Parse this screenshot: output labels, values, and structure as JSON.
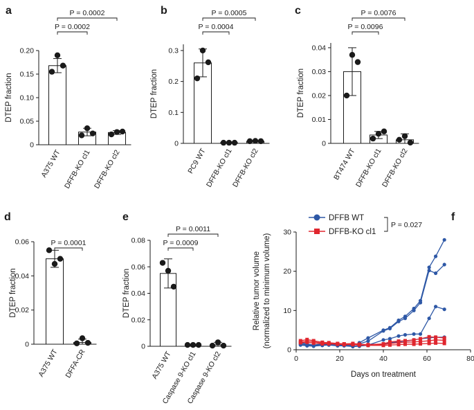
{
  "chart_data": [
    {
      "id": "a",
      "type": "bar",
      "panel_label": "a",
      "ylabel": "DTEP fraction",
      "ylim": [
        0,
        0.2
      ],
      "yticks": [
        0,
        0.05,
        0.1,
        0.15,
        0.2
      ],
      "ytick_labels": [
        "0",
        "0.05",
        "0.10",
        "0.15",
        "0.20"
      ],
      "categories": [
        "A375 WT",
        "DFFB-KO cl1",
        "DFFB-KO cl2"
      ],
      "values": [
        0.168,
        0.027,
        0.026
      ],
      "errors": [
        0.015,
        0.008,
        0.004
      ],
      "points": [
        [
          0.155,
          0.19,
          0.168
        ],
        [
          0.02,
          0.035,
          0.024
        ],
        [
          0.022,
          0.027,
          0.028
        ]
      ],
      "comparisons": [
        {
          "from": 0,
          "to": 1,
          "p": "P = 0.0002",
          "level": 1
        },
        {
          "from": 0,
          "to": 2,
          "p": "P = 0.0002",
          "level": 2
        }
      ]
    },
    {
      "id": "b",
      "type": "bar",
      "panel_label": "b",
      "ylabel": "DTEP fraction",
      "ylim": [
        0,
        0.32
      ],
      "yticks": [
        0,
        0.1,
        0.2,
        0.3
      ],
      "ytick_labels": [
        "0",
        "0.1",
        "0.2",
        "0.3"
      ],
      "categories": [
        "PC9 WT",
        "DFFB-KO cl1",
        "DFFB-KO cl2"
      ],
      "values": [
        0.26,
        0.002,
        0.007
      ],
      "errors": [
        0.045,
        0.002,
        0.002
      ],
      "points": [
        [
          0.21,
          0.3,
          0.262
        ],
        [
          0.002,
          0.002,
          0.002
        ],
        [
          0.007,
          0.008,
          0.007
        ]
      ],
      "comparisons": [
        {
          "from": 0,
          "to": 1,
          "p": "P = 0.0004",
          "level": 1
        },
        {
          "from": 0,
          "to": 2,
          "p": "P = 0.0005",
          "level": 2
        }
      ]
    },
    {
      "id": "c",
      "type": "bar",
      "panel_label": "c",
      "ylabel": "DTEP fraction",
      "ylim": [
        0,
        0.042
      ],
      "yticks": [
        0,
        0.01,
        0.02,
        0.03,
        0.04
      ],
      "ytick_labels": [
        "0",
        "0.01",
        "0.02",
        "0.03",
        "0.04"
      ],
      "categories": [
        "BT474 WT",
        "DFFB-KO cl1",
        "DFFB-KO cl2"
      ],
      "values": [
        0.03,
        0.0035,
        0.0015
      ],
      "errors": [
        0.01,
        0.0015,
        0.0025
      ],
      "points": [
        [
          0.02,
          0.037,
          0.034
        ],
        [
          0.002,
          0.004,
          0.005
        ],
        [
          0.0015,
          0.003,
          0.0003
        ]
      ],
      "comparisons": [
        {
          "from": 0,
          "to": 1,
          "p": "P = 0.0096",
          "level": 1
        },
        {
          "from": 0,
          "to": 2,
          "p": "P = 0.0076",
          "level": 2
        }
      ]
    },
    {
      "id": "d",
      "type": "bar",
      "panel_label": "d",
      "ylabel": "DTEP fraction",
      "ylim": [
        0,
        0.06
      ],
      "yticks": [
        0,
        0.02,
        0.04,
        0.06
      ],
      "ytick_labels": [
        "0",
        "0.02",
        "0.04",
        "0.06"
      ],
      "categories": [
        "A375 WT",
        "DFFA-CR"
      ],
      "values": [
        0.05,
        0.001
      ],
      "errors": [
        0.005,
        0.002
      ],
      "points": [
        [
          0.055,
          0.047,
          0.05
        ],
        [
          0.0005,
          0.0035,
          0.0008
        ]
      ],
      "comparisons": [
        {
          "from": 0,
          "to": 1,
          "p": "P = 0.0001",
          "level": 1
        }
      ]
    },
    {
      "id": "e",
      "type": "bar",
      "panel_label": "e",
      "ylabel": "DTEP fraction",
      "ylim": [
        0,
        0.08
      ],
      "yticks": [
        0,
        0.02,
        0.04,
        0.06,
        0.08
      ],
      "ytick_labels": [
        "0",
        "0.02",
        "0.04",
        "0.06",
        "0.08"
      ],
      "categories": [
        "A375 WT",
        "Caspase 9-KO cl1",
        "Caspase 9-KO cl2"
      ],
      "values": [
        0.055,
        0.001,
        0.001
      ],
      "errors": [
        0.011,
        0.0005,
        0.002
      ],
      "points": [
        [
          0.063,
          0.057,
          0.045
        ],
        [
          0.001,
          0.001,
          0.001
        ],
        [
          0.0005,
          0.003,
          0.0005
        ]
      ],
      "comparisons": [
        {
          "from": 0,
          "to": 1,
          "p": "P = 0.0009",
          "level": 1
        },
        {
          "from": 0,
          "to": 2,
          "p": "P = 0.0011",
          "level": 2
        }
      ]
    },
    {
      "id": "f",
      "type": "line",
      "panel_label": "f",
      "xlabel": "Days on treatment",
      "ylabel_line1": "Relative tumor volume",
      "ylabel_line2": "(normalized to minimum volume)",
      "xlim": [
        0,
        80
      ],
      "ylim": [
        0,
        30
      ],
      "xticks": [
        0,
        20,
        40,
        60,
        80
      ],
      "yticks": [
        0,
        10,
        20,
        30
      ],
      "xtick_labels": [
        "0",
        "20",
        "40",
        "60",
        "80"
      ],
      "ytick_labels": [
        "0",
        "10",
        "20",
        "30"
      ],
      "stat": "P = 0.027",
      "series": [
        {
          "name": "DFFB WT",
          "group": "wt",
          "color": "#2e58a6",
          "x": [
            2,
            5,
            8,
            12,
            15,
            19,
            22,
            26,
            29,
            33,
            40,
            43,
            47,
            50,
            54,
            57,
            61,
            64,
            68
          ],
          "y": [
            1.5,
            1.3,
            1.0,
            1.3,
            1.4,
            1.2,
            1.2,
            1.0,
            1.8,
            3.0,
            5.0,
            5.6,
            7.5,
            8.5,
            10.5,
            12.5,
            21.0,
            23.8,
            28.0
          ]
        },
        {
          "name": "DFFB WT",
          "group": "wt",
          "color": "#2e58a6",
          "x": [
            2,
            5,
            8,
            12,
            15,
            19,
            22,
            26,
            29,
            33,
            40,
            43,
            47,
            50,
            54,
            57,
            61,
            64,
            68
          ],
          "y": [
            1.8,
            1.5,
            1.2,
            1.5,
            1.6,
            1.4,
            1.3,
            1.1,
            1.5,
            2.2,
            4.8,
            5.4,
            7.2,
            8.0,
            10.0,
            12.0,
            20.2,
            19.5,
            21.7
          ]
        },
        {
          "name": "DFFB WT",
          "group": "wt",
          "color": "#2e58a6",
          "x": [
            2,
            5,
            8,
            12,
            15,
            19,
            22,
            26,
            29,
            33,
            40,
            43,
            47,
            50,
            54,
            57,
            61,
            64,
            68
          ],
          "y": [
            1.2,
            1.0,
            0.9,
            1.1,
            1.2,
            1.0,
            1.0,
            0.8,
            0.9,
            1.2,
            2.5,
            2.8,
            3.5,
            3.8,
            4.0,
            4.0,
            8.0,
            11.0,
            10.3
          ]
        },
        {
          "name": "DFFB WT",
          "group": "wt",
          "color": "#2e58a6",
          "x": [
            2,
            5,
            8,
            12,
            15,
            19,
            22,
            26,
            29,
            33,
            40,
            43,
            47,
            50,
            54,
            57,
            61,
            64,
            68
          ],
          "y": [
            1.4,
            1.2,
            1.1,
            1.2,
            1.3,
            1.1,
            1.1,
            0.9,
            1.0,
            1.1,
            1.5,
            1.8,
            2.0,
            2.2,
            2.5,
            2.8,
            3.0,
            3.2,
            3.2
          ]
        },
        {
          "name": "DFFB-KO cl1",
          "group": "ko",
          "color": "#e0262e",
          "x": [
            2,
            5,
            8,
            12,
            15,
            19,
            22,
            26,
            29,
            33,
            40,
            43,
            47,
            50,
            54,
            57,
            61,
            64,
            68
          ],
          "y": [
            2.3,
            2.6,
            2.3,
            1.9,
            1.8,
            1.6,
            1.5,
            1.6,
            1.4,
            1.3,
            1.5,
            2.0,
            2.2,
            2.3,
            2.5,
            2.8,
            3.3,
            3.2,
            3.0
          ]
        },
        {
          "name": "DFFB-KO cl1",
          "group": "ko",
          "color": "#e0262e",
          "x": [
            2,
            5,
            8,
            12,
            15,
            19,
            22,
            26,
            29,
            33,
            40,
            43,
            47,
            50,
            54,
            57,
            61,
            64,
            68
          ],
          "y": [
            2.0,
            2.2,
            2.0,
            1.7,
            1.6,
            1.5,
            1.4,
            1.4,
            1.3,
            1.2,
            1.3,
            1.6,
            1.8,
            1.9,
            2.0,
            2.1,
            2.3,
            2.5,
            2.4
          ]
        },
        {
          "name": "DFFB-KO cl1",
          "group": "ko",
          "color": "#e0262e",
          "x": [
            2,
            5,
            8,
            12,
            15,
            19,
            22,
            26,
            29,
            33,
            40,
            43,
            47,
            50,
            54,
            57,
            61,
            64,
            68
          ],
          "y": [
            1.8,
            1.9,
            1.7,
            1.5,
            1.5,
            1.4,
            1.3,
            1.3,
            1.2,
            1.1,
            1.1,
            1.2,
            1.3,
            1.4,
            1.4,
            1.5,
            1.6,
            1.7,
            1.6
          ]
        }
      ]
    }
  ]
}
